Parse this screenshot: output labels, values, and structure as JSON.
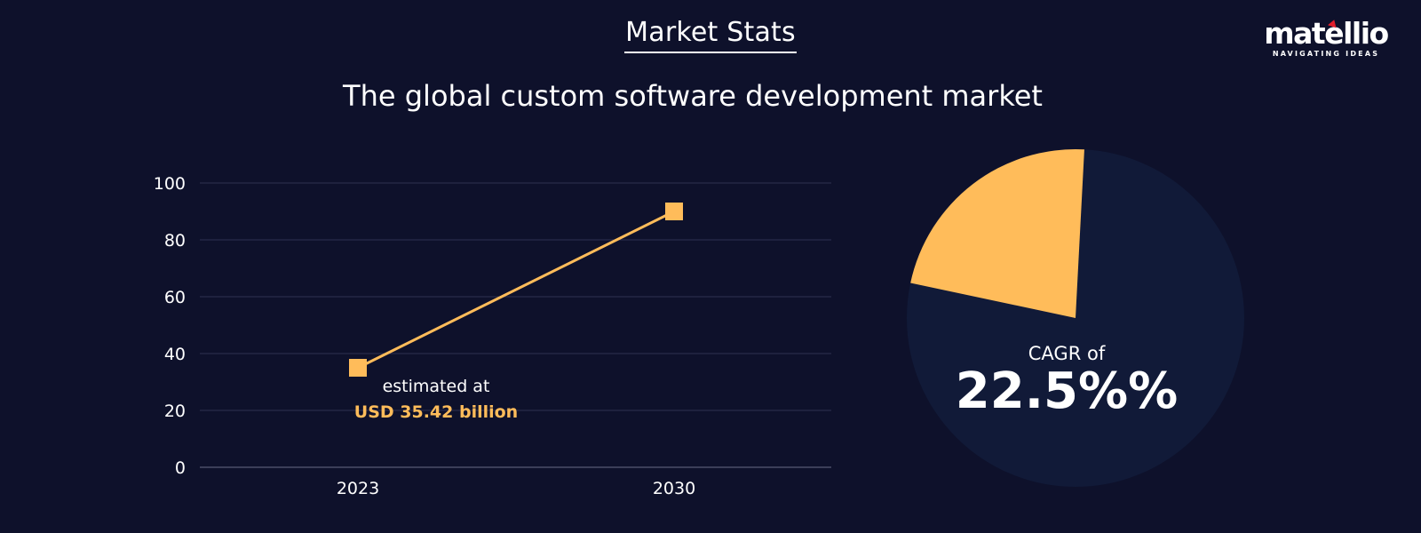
{
  "header": {
    "title": "Market Stats",
    "subtitle": "The global custom software development market"
  },
  "logo": {
    "name": "matellio",
    "tagline": "NAVIGATING IDEAS",
    "accent_color": "#e21f2c"
  },
  "colors": {
    "background": "#0e112b",
    "accent": "#ffbc5a",
    "pie_base": "#111a38",
    "grid": "#2e3150",
    "text": "#ffffff"
  },
  "chart_data": [
    {
      "type": "line",
      "categories": [
        "2023",
        "2030"
      ],
      "values": [
        35,
        90
      ],
      "ylim": [
        0,
        100
      ],
      "yticks": [
        0,
        20,
        40,
        60,
        80,
        100
      ],
      "grid": true,
      "marker": "square",
      "annotation": {
        "text": "estimated at",
        "value": "USD 35.42 billion"
      }
    },
    {
      "type": "pie",
      "slices": [
        {
          "value": 22.5
        },
        {
          "value": 77.5
        }
      ],
      "label": "CAGR of",
      "value_label": "22.5%%"
    }
  ]
}
